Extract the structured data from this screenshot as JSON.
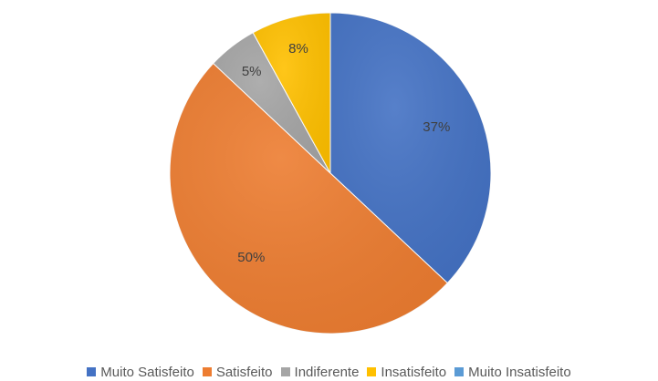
{
  "chart_data": {
    "type": "pie",
    "title": "",
    "categories": [
      "Muito Satisfeito",
      "Satisfeito",
      "Indiferente",
      "Insatisfeito",
      "Muito Insatisfeito"
    ],
    "values": [
      37,
      50,
      5,
      8,
      0
    ],
    "data_labels": [
      "37%",
      "50%",
      "5%",
      "8%",
      ""
    ],
    "colors": [
      "#4472C4",
      "#ED7D31",
      "#A5A5A5",
      "#FFC000",
      "#5B9BD5"
    ],
    "legend_position": "bottom",
    "start_angle": "top, clockwise"
  }
}
